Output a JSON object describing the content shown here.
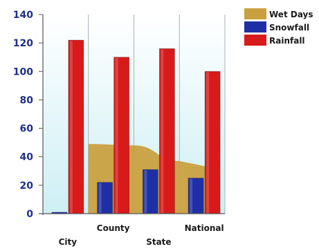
{
  "chart_data": {
    "type": "bar",
    "categories": [
      "City",
      "County",
      "State",
      "National"
    ],
    "series": [
      {
        "name": "Wet Days",
        "type": "area",
        "values": [
          null,
          49,
          48,
          37
        ],
        "color": "#c9a040"
      },
      {
        "name": "Snowfall",
        "type": "bar",
        "values": [
          1,
          22,
          31,
          25
        ],
        "color": "#1f2fa6"
      },
      {
        "name": "Rainfall",
        "type": "bar",
        "values": [
          122,
          110,
          116,
          100
        ],
        "color": "#d81a1a"
      }
    ],
    "ylim": [
      0,
      140
    ],
    "yticks": [
      0,
      20,
      40,
      60,
      80,
      100,
      120,
      140
    ],
    "grid": "vertical",
    "legend_position": "top-right",
    "title": "",
    "xlabel": "",
    "ylabel": "",
    "background": [
      "#ffffff",
      "#cdeff5"
    ]
  }
}
